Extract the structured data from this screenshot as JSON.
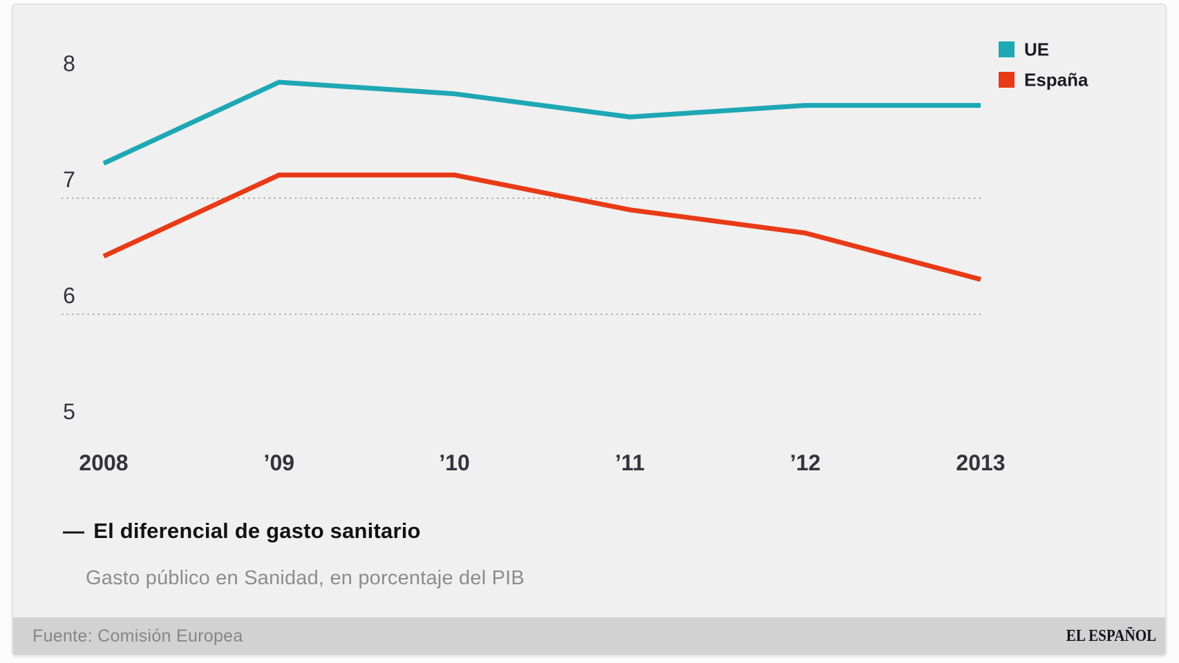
{
  "page": {
    "background": "#fcfcfc"
  },
  "card": {
    "background": "#f0f0f0",
    "footer_background": "#d2d2d2"
  },
  "title": {
    "dash": "—",
    "text": "El diferencial de gasto sanitario"
  },
  "subtitle": "Gasto público en Sanidad, en porcentaje del PIB",
  "footer": {
    "source": "Fuente: Comisión Europea",
    "brand": "EL ESPAÑOL"
  },
  "chart_data": {
    "type": "line",
    "title": "El diferencial de gasto sanitario",
    "subtitle": "Gasto público en Sanidad, en porcentaje del PIB",
    "x": [
      2008,
      2009,
      2010,
      2011,
      2012,
      2013
    ],
    "x_tick_labels": [
      "2008",
      "’09",
      "’10",
      "’11",
      "’12",
      "2013"
    ],
    "y_ticks": [
      8,
      7,
      6,
      5
    ],
    "gridlines_at_values": [
      7,
      6
    ],
    "ylim": [
      4.95,
      8.35
    ],
    "grid": "horizontal dotted only",
    "legend_position": "top-right",
    "unit": "porcentaje del PIB",
    "source": "Comisión Europea",
    "series": [
      {
        "name": "UE",
        "color": "#1ea7b4",
        "values": [
          7.3,
          8.0,
          7.9,
          7.7,
          7.8,
          7.8
        ]
      },
      {
        "name": "España",
        "color": "#e83a17",
        "values": [
          6.5,
          7.2,
          7.2,
          6.9,
          6.7,
          6.3
        ]
      }
    ],
    "colors": {
      "tick_label": "#33333a",
      "gridline": "#aeaeae"
    }
  }
}
